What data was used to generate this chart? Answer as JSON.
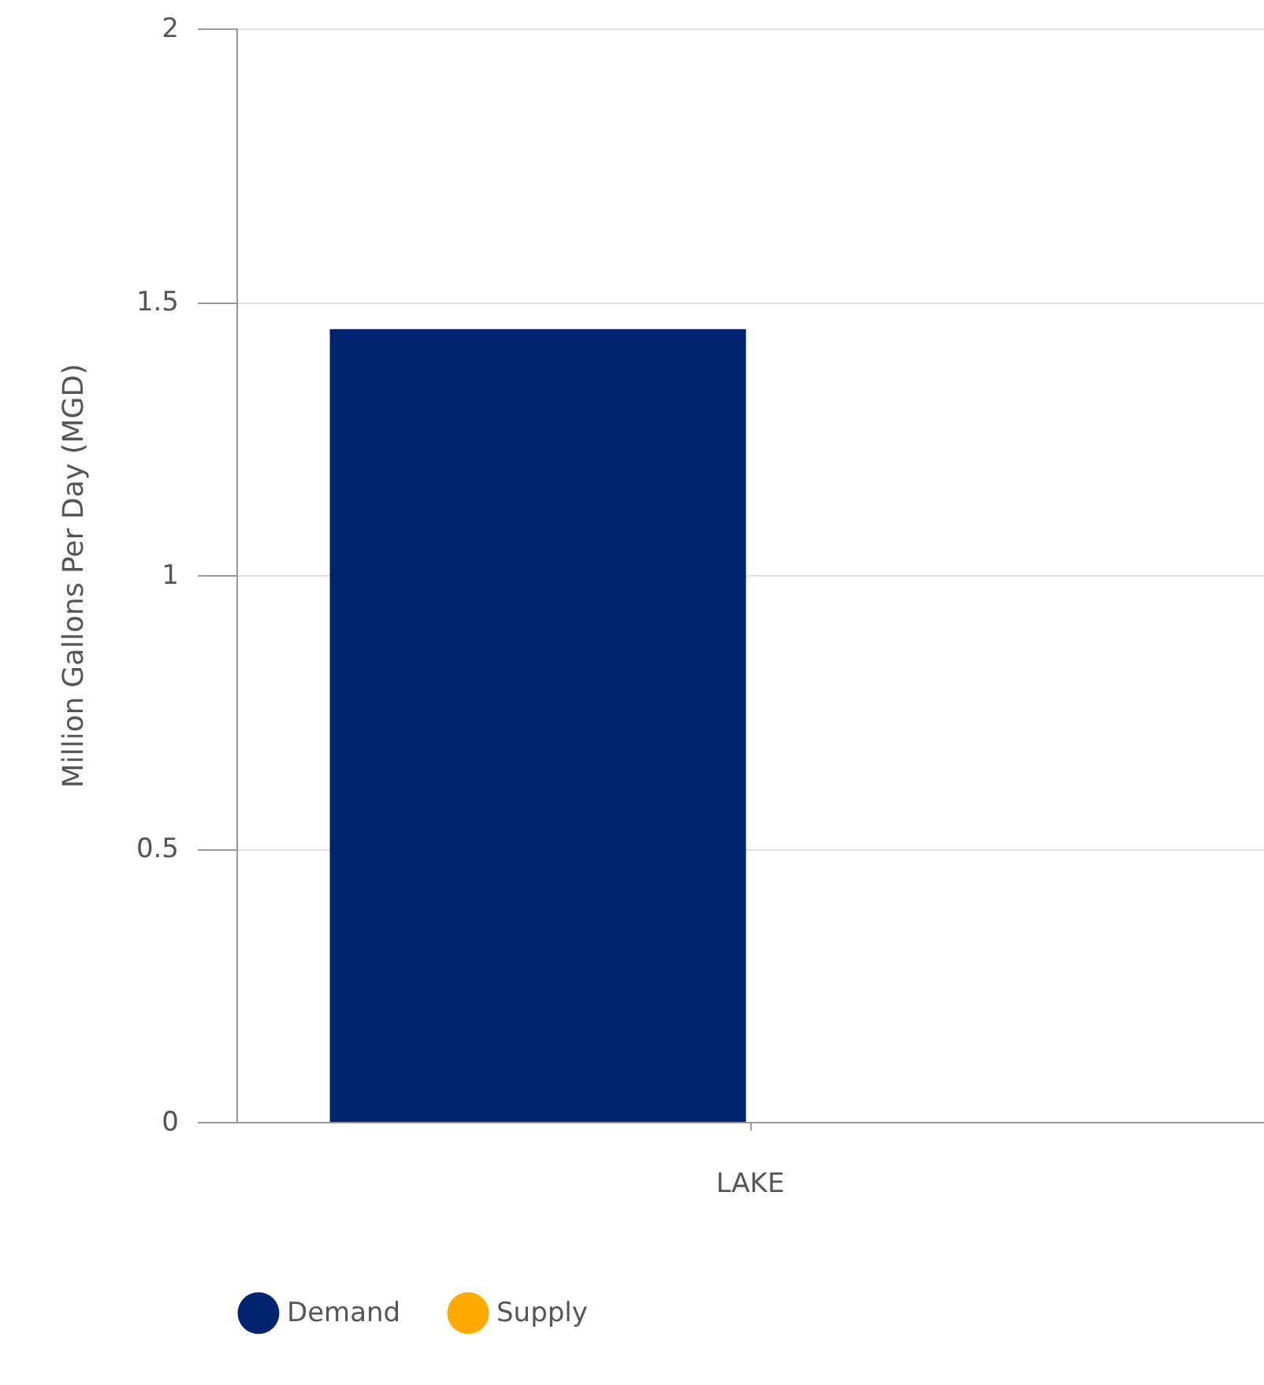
{
  "chart_data": {
    "type": "bar",
    "ylabel": "Million Gallons Per Day (MGD)",
    "categories": [
      "LAKE"
    ],
    "series": [
      {
        "name": "Demand",
        "color": "#00236f",
        "values": [
          1.45
        ]
      },
      {
        "name": "Supply",
        "color": "#ffaa00",
        "values": [
          0
        ]
      }
    ],
    "ylim": [
      0,
      2
    ],
    "yticks": [
      0,
      0.5,
      1,
      1.5,
      2
    ],
    "grid": "y",
    "legend": "bottom"
  }
}
